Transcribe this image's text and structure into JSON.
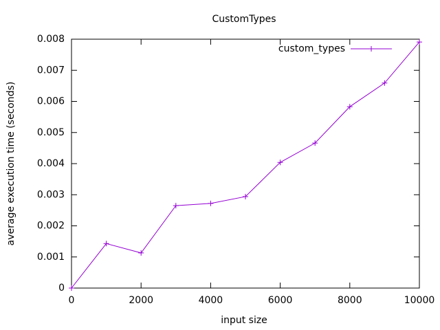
{
  "chart_data": {
    "type": "line",
    "title": "CustomTypes",
    "x_label": "input size",
    "y_label": "average execution time (seconds)",
    "x": [
      0,
      1000,
      2000,
      3000,
      4000,
      5000,
      6000,
      7000,
      8000,
      9000,
      10000
    ],
    "series": [
      {
        "name": "custom_types",
        "color": "#9400d3",
        "values": [
          0,
          0.00143,
          0.00113,
          0.00265,
          0.00272,
          0.00294,
          0.00404,
          0.00466,
          0.00583,
          0.00659,
          0.00791
        ]
      }
    ],
    "xlim": [
      0,
      10000
    ],
    "xticks": [
      0,
      2000,
      4000,
      6000,
      8000,
      10000
    ],
    "ylim": [
      0,
      0.008
    ],
    "yticks": [
      0,
      0.001,
      0.002,
      0.003,
      0.004,
      0.005,
      0.006,
      0.007,
      0.008
    ],
    "legend": "top right",
    "grid": false
  }
}
